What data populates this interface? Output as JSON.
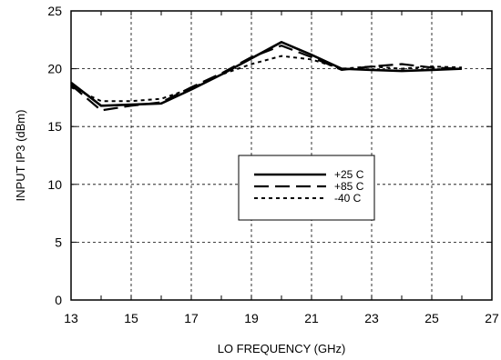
{
  "chart_data": {
    "type": "line",
    "title": "",
    "xlabel": "LO FREQUENCY (GHz)",
    "ylabel": "INPUT  IP3 (dBm)",
    "xlim": [
      13,
      27
    ],
    "ylim": [
      0,
      25
    ],
    "x_ticks": [
      13,
      15,
      17,
      19,
      21,
      23,
      25,
      27
    ],
    "y_ticks": [
      0,
      5,
      10,
      15,
      20,
      25
    ],
    "grid": true,
    "legend_position": "center-right",
    "series": [
      {
        "name": "+25 C",
        "style": "solid",
        "x": [
          13,
          14,
          16,
          17,
          18,
          19,
          20,
          21,
          22,
          23,
          24,
          25,
          26
        ],
        "y": [
          18.8,
          16.8,
          17.0,
          18.2,
          19.5,
          20.9,
          22.3,
          21.2,
          20.0,
          19.9,
          19.8,
          19.9,
          20.0
        ]
      },
      {
        "name": "+85 C",
        "style": "long-dash",
        "x": [
          13,
          14,
          15,
          16,
          17,
          18,
          19,
          20,
          21,
          22,
          23,
          24,
          25,
          26
        ],
        "y": [
          18.6,
          16.4,
          16.8,
          17.1,
          18.4,
          19.6,
          21.0,
          22.0,
          21.0,
          19.9,
          20.2,
          20.4,
          20.1,
          20.0
        ]
      },
      {
        "name": "-40 C",
        "style": "short-dash",
        "x": [
          13,
          14,
          15,
          16,
          17,
          18,
          19,
          20,
          21,
          22,
          23,
          24,
          25,
          26
        ],
        "y": [
          18.4,
          17.2,
          17.2,
          17.4,
          18.3,
          19.5,
          20.4,
          21.1,
          20.8,
          20.0,
          20.2,
          20.0,
          20.2,
          20.1
        ]
      }
    ]
  }
}
